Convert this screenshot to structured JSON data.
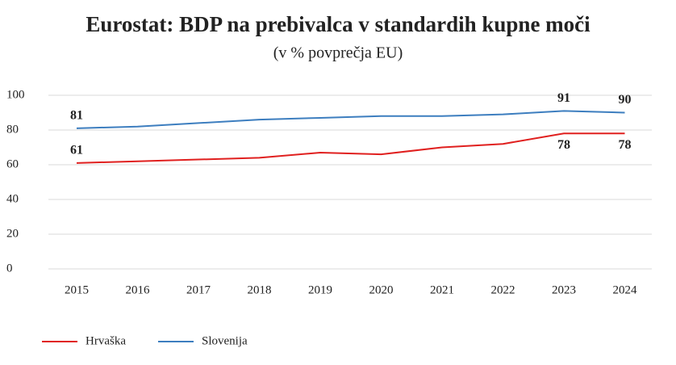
{
  "chart_data": {
    "type": "line",
    "title": "Eurostat: BDP na prebivalca v standardih kupne moči",
    "subtitle": "(v % povprečja EU)",
    "categories": [
      "2015",
      "2016",
      "2017",
      "2018",
      "2019",
      "2020",
      "2021",
      "2022",
      "2023",
      "2024"
    ],
    "series": [
      {
        "name": "Hrvaška",
        "color": "#e0201f",
        "values": [
          61,
          62,
          63,
          64,
          67,
          66,
          70,
          72,
          78,
          78
        ],
        "label_points": [
          0,
          8,
          9
        ]
      },
      {
        "name": "Slovenija",
        "color": "#3d7ebf",
        "values": [
          81,
          82,
          84,
          86,
          87,
          88,
          88,
          89,
          91,
          90
        ],
        "label_points": [
          0,
          8,
          9
        ]
      }
    ],
    "ylim": [
      0,
      100
    ],
    "yticks": [
      0,
      20,
      40,
      60,
      80,
      100
    ],
    "grid": true,
    "legend": "bottom-left"
  }
}
